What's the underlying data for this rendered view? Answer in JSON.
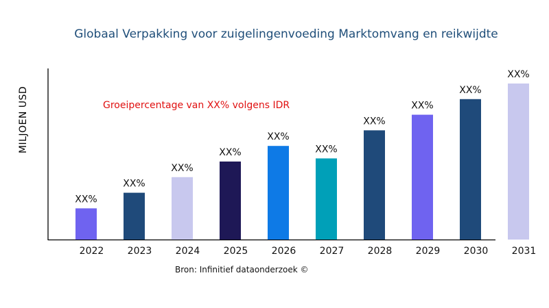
{
  "chart_data": {
    "type": "bar",
    "title": "Globaal Verpakking voor zuigelingenvoeding Marktomvang en reikwijdte",
    "ylabel": "MILJOEN USD",
    "xlabel": "",
    "annotation": "Groeipercentage van XX% volgens IDR",
    "source": "Bron: Infinitief dataonderzoek ©",
    "categories": [
      "2022",
      "2023",
      "2024",
      "2025",
      "2026",
      "2027",
      "2028",
      "2029",
      "2030",
      "2031"
    ],
    "values": [
      20,
      30,
      40,
      50,
      60,
      52,
      70,
      80,
      90,
      100
    ],
    "data_labels": [
      "XX%",
      "XX%",
      "XX%",
      "XX%",
      "XX%",
      "XX%",
      "XX%",
      "XX%",
      "XX%",
      "XX%"
    ],
    "colors": [
      "#6f63f0",
      "#1f4a7a",
      "#c8c8ee",
      "#1e1856",
      "#0e7ae6",
      "#00a0b8",
      "#1f4a7a",
      "#6f63f0",
      "#1f4a7a",
      "#c8c8ee"
    ],
    "ylim": [
      0,
      110
    ],
    "grid": false,
    "legend": "none"
  }
}
